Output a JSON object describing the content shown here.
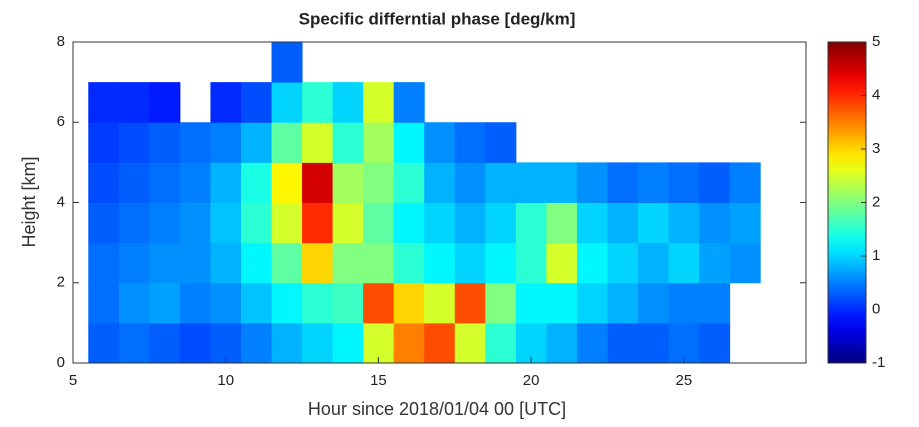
{
  "chart_data": {
    "type": "heatmap",
    "title": "Specific differntial phase [deg/km]",
    "x_label": "Hour since 2018/01/04 00 [UTC]",
    "y_label": "Height [km]",
    "xlim": [
      5,
      29
    ],
    "xticks": [
      5,
      10,
      15,
      20,
      25
    ],
    "ylim": [
      0,
      8
    ],
    "yticks": [
      0,
      2,
      4,
      6,
      8
    ],
    "clim": [
      -1,
      5
    ],
    "cticks": [
      -1,
      0,
      1,
      2,
      3,
      4,
      5
    ],
    "colormap": "jet",
    "xbins": [
      5.5,
      6.5,
      7.5,
      8.5,
      9.5,
      10.5,
      11.5,
      12.5,
      13.5,
      14.5,
      15.5,
      16.5,
      17.5,
      18.5,
      19.5,
      20.5,
      21.5,
      22.5,
      23.5,
      24.5,
      25.5,
      26.5,
      27.5
    ],
    "ybins": [
      0,
      1,
      2,
      3,
      4,
      5,
      6,
      7,
      8
    ],
    "z": [
      [
        0.3,
        0.4,
        0.3,
        0.2,
        0.3,
        0.5,
        0.8,
        1.0,
        1.2,
        2.5,
        3.5,
        3.8,
        2.5,
        1.5,
        1.0,
        0.8,
        0.5,
        0.3,
        0.3,
        0.4,
        0.3,
        null
      ],
      [
        0.4,
        0.6,
        0.7,
        0.5,
        0.6,
        0.9,
        1.2,
        1.5,
        1.6,
        3.8,
        3.0,
        2.5,
        3.8,
        2.0,
        1.2,
        1.2,
        1.0,
        0.8,
        0.6,
        0.5,
        0.5,
        null
      ],
      [
        0.4,
        0.5,
        0.6,
        0.6,
        0.8,
        1.2,
        1.8,
        3.0,
        2.0,
        2.0,
        1.5,
        1.2,
        1.0,
        1.2,
        1.5,
        2.5,
        1.2,
        1.0,
        0.8,
        1.0,
        0.7,
        0.6
      ],
      [
        0.3,
        0.4,
        0.5,
        0.6,
        0.9,
        1.5,
        2.5,
        4.0,
        2.5,
        1.8,
        1.2,
        1.0,
        0.8,
        1.0,
        1.5,
        2.0,
        1.0,
        0.8,
        1.0,
        0.8,
        0.6,
        0.7
      ],
      [
        0.2,
        0.3,
        0.4,
        0.5,
        0.8,
        1.4,
        2.8,
        4.5,
        2.2,
        2.0,
        1.5,
        0.8,
        0.6,
        0.8,
        0.8,
        0.8,
        0.6,
        0.4,
        0.5,
        0.4,
        0.3,
        0.5
      ],
      [
        0.1,
        0.2,
        0.3,
        0.4,
        0.5,
        0.8,
        1.8,
        2.5,
        1.5,
        2.2,
        1.2,
        0.6,
        0.4,
        0.3,
        null,
        null,
        null,
        null,
        null,
        null,
        null,
        null
      ],
      [
        0.0,
        0.0,
        -0.1,
        null,
        0.0,
        0.2,
        1.0,
        1.5,
        1.0,
        2.5,
        0.5,
        null,
        null,
        null,
        null,
        null,
        null,
        null,
        null,
        null,
        null,
        null
      ],
      [
        null,
        null,
        null,
        null,
        null,
        null,
        0.3,
        null,
        null,
        null,
        null,
        null,
        null,
        null,
        null,
        null,
        null,
        null,
        null,
        null,
        null,
        null
      ]
    ]
  }
}
